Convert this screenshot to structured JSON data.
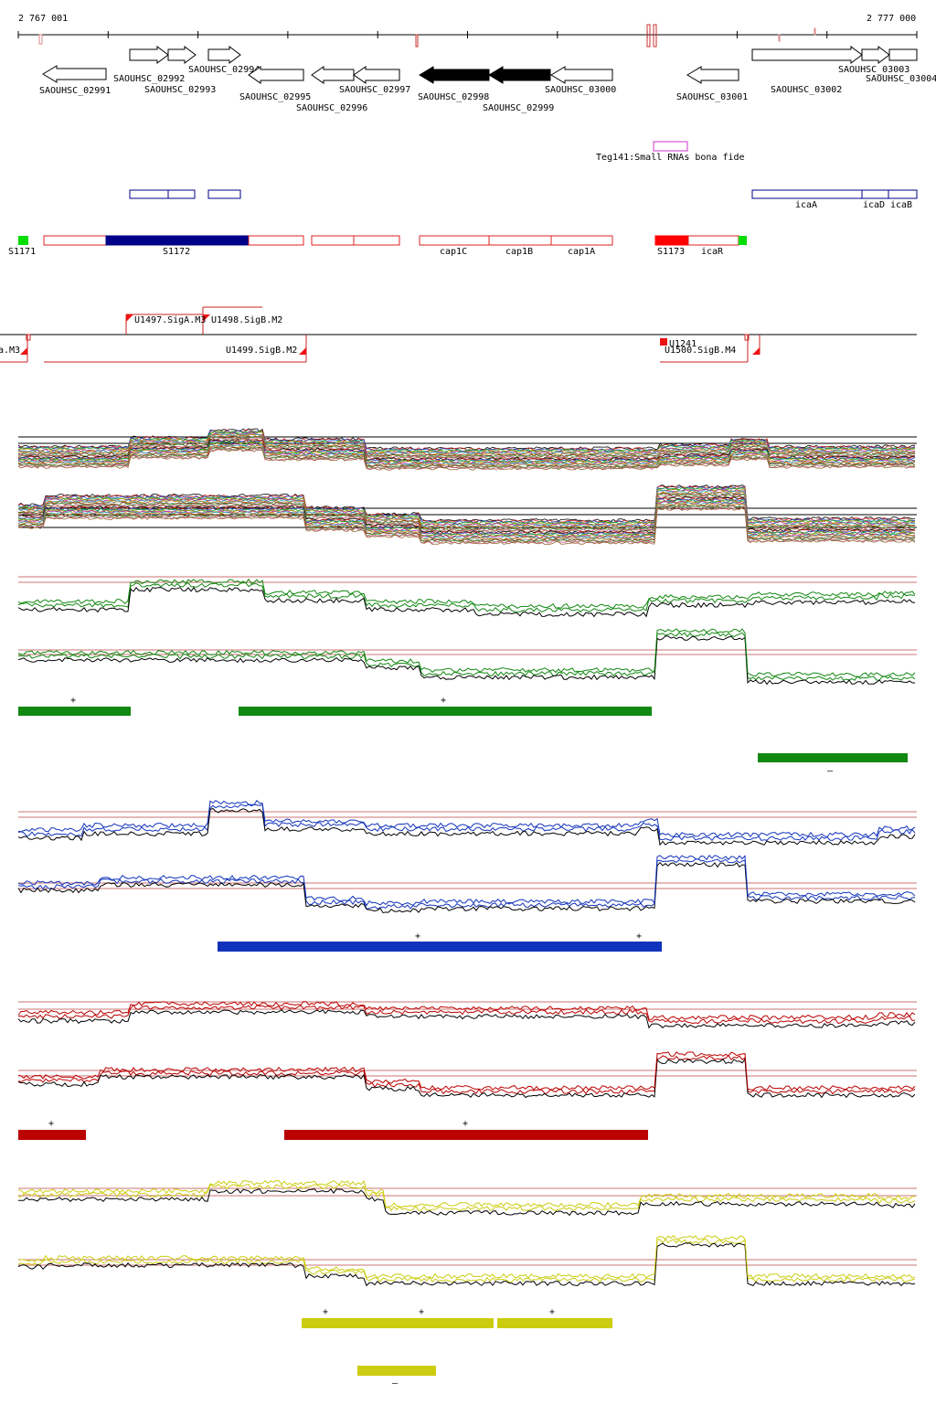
{
  "ruler": {
    "start_label": "2 767 001",
    "end_label": "2 777 000"
  },
  "genes": [
    {
      "name": "SAOUHSC_02991",
      "strand": "-",
      "filled": false
    },
    {
      "name": "SAOUHSC_02992",
      "strand": "+",
      "filled": false
    },
    {
      "name": "SAOUHSC_02993",
      "strand": "+",
      "filled": false
    },
    {
      "name": "SAOUHSC_02994",
      "strand": "+",
      "filled": false
    },
    {
      "name": "SAOUHSC_02995",
      "strand": "-",
      "filled": false
    },
    {
      "name": "SAOUHSC_02996",
      "strand": "-",
      "filled": false
    },
    {
      "name": "SAOUHSC_02997",
      "strand": "-",
      "filled": false
    },
    {
      "name": "SAOUHSC_02998",
      "strand": "-",
      "filled": true
    },
    {
      "name": "SAOUHSC_02999",
      "strand": "-",
      "filled": true
    },
    {
      "name": "SAOUHSC_03000",
      "strand": "-",
      "filled": false
    },
    {
      "name": "SAOUHSC_03001",
      "strand": "-",
      "filled": false
    },
    {
      "name": "SAOUHSC_03002",
      "strand": "+",
      "filled": false
    },
    {
      "name": "SAOUHSC_03003",
      "strand": "+",
      "filled": false
    },
    {
      "name": "SAOUHSC_03004",
      "strand": "+",
      "filled": false
    }
  ],
  "small_rna": {
    "label": "Teg141:Small RNAs bona fide",
    "color": "#cc33cc"
  },
  "ica_labels": [
    "icaA",
    "icaD",
    "icaB"
  ],
  "segments": {
    "labels": [
      "S1171",
      "S1172",
      "cap1C",
      "cap1B",
      "cap1A",
      "S1173",
      "icaR"
    ],
    "colors": {
      "outline": "#dd2222",
      "s1172_fill": "#000088",
      "s1173_fill": "#ff0000",
      "marker": "#00dd00"
    }
  },
  "promoters": [
    "U1497.SigA.M3",
    "U1498.SigB.M2",
    "U1499.SigB.M2",
    "a.M3",
    "U1241",
    "U1500.SigB.M4"
  ],
  "panels": [
    {
      "name": "green-panel",
      "color": "#118811",
      "plus_strand_marks": [
        "+",
        "+"
      ],
      "minus_strand_marks": [
        "–"
      ]
    },
    {
      "name": "blue-panel",
      "color": "#1133bb",
      "plus_strand_marks": [
        "+",
        "+"
      ],
      "minus_strand_marks": []
    },
    {
      "name": "red-panel",
      "color": "#bb0000",
      "plus_strand_marks": [
        "+",
        "+"
      ],
      "minus_strand_marks": []
    },
    {
      "name": "yellow-panel",
      "color": "#cccc11",
      "plus_strand_marks": [
        "+",
        "+",
        "+"
      ],
      "minus_strand_marks": [
        "–"
      ]
    }
  ],
  "multi_track_palette": [
    "#000000",
    "#cc2222",
    "#2255cc",
    "#22aa22",
    "#aa8800",
    "#aa22aa",
    "#22aaaa",
    "#dd7700",
    "#888888",
    "#663300",
    "#55aa55",
    "#cc5588",
    "#996633"
  ]
}
